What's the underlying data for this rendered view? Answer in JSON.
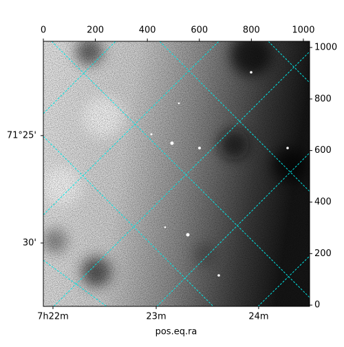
{
  "chart_data": {
    "type": "image",
    "xlabel": "pos.eq.ra",
    "xlim": [
      0,
      1024
    ],
    "ylim": [
      -5,
      1024
    ],
    "xticks": [
      0,
      200,
      400,
      600,
      800,
      1000
    ],
    "yticks": [
      0,
      200,
      400,
      600,
      800,
      1000
    ],
    "ra_ticks": [
      {
        "value": 37,
        "label": "7h22m"
      },
      {
        "value": 434,
        "label": "23m"
      },
      {
        "value": 828,
        "label": "24m"
      }
    ],
    "dec_ticks": [
      {
        "value": 658,
        "label": "71°25'"
      },
      {
        "value": 241,
        "label": "30'"
      }
    ],
    "grid": true,
    "grid_color": "#00e5e5"
  }
}
